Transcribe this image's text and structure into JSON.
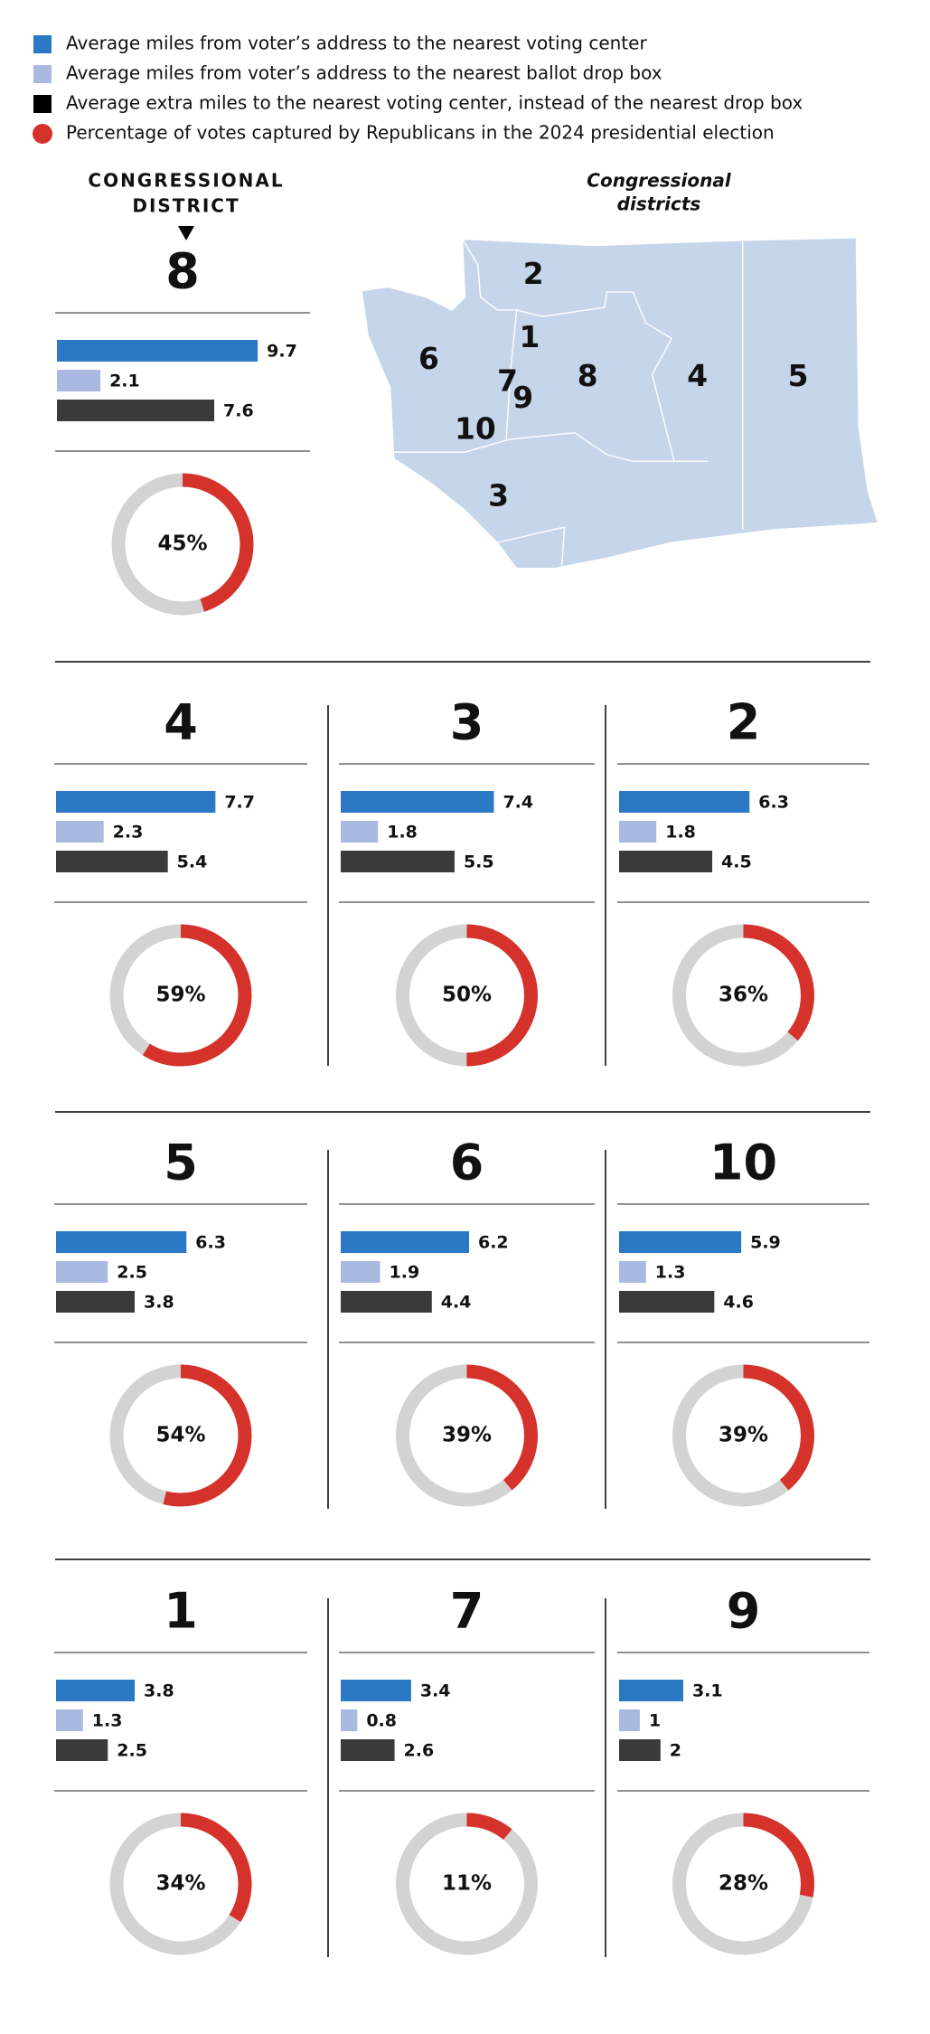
{
  "legend": [
    {
      "label": "Average miles from voter’s address to the nearest voting center",
      "color": "#2b78c5",
      "shape": "square"
    },
    {
      "label": "Average miles from voter’s address to the nearest ballot drop box",
      "color": "#a9b9e0",
      "shape": "square"
    },
    {
      "label": "Average extra miles to the nearest voting center, instead of the nearest drop box",
      "color": "#000000",
      "shape": "square"
    },
    {
      "label": "Percentage of votes captured by Republicans in the 2024 presidential election",
      "color": "#d4322b",
      "shape": "circle"
    }
  ],
  "header": {
    "lines": [
      "CONGRESSIONAL",
      "DISTRICT"
    ]
  },
  "map": {
    "title_lines": [
      "Congressional",
      "districts"
    ],
    "labels": [
      "2",
      "1",
      "6",
      "7",
      "9",
      "8",
      "4",
      "5",
      "10",
      "3"
    ],
    "color": "#c5d5ea"
  },
  "bar_colors": [
    "#2b78c5",
    "#a9b9e0",
    "#3a3a3a"
  ],
  "ring_color": "#d3d3d3",
  "arc_color": "#d4322b",
  "districts": [
    {
      "name": "8",
      "bars": [
        9.7,
        2.1,
        7.6
      ],
      "percent": 45,
      "percent_label": "45%"
    },
    {
      "name": "4",
      "bars": [
        7.7,
        2.3,
        5.4
      ],
      "percent": 59,
      "percent_label": "59%"
    },
    {
      "name": "3",
      "bars": [
        7.4,
        1.8,
        5.5
      ],
      "percent": 50,
      "percent_label": "50%"
    },
    {
      "name": "2",
      "bars": [
        6.3,
        1.8,
        4.5
      ],
      "percent": 36,
      "percent_label": "36%"
    },
    {
      "name": "5",
      "bars": [
        6.3,
        2.5,
        3.8
      ],
      "percent": 54,
      "percent_label": "54%"
    },
    {
      "name": "6",
      "bars": [
        6.2,
        1.9,
        4.4
      ],
      "percent": 39,
      "percent_label": "39%"
    },
    {
      "name": "10",
      "bars": [
        5.9,
        1.3,
        4.6
      ],
      "percent": 39,
      "percent_label": "39%"
    },
    {
      "name": "1",
      "bars": [
        3.8,
        1.3,
        2.5
      ],
      "percent": 34,
      "percent_label": "34%"
    },
    {
      "name": "7",
      "bars": [
        3.4,
        0.8,
        2.6
      ],
      "percent": 11,
      "percent_label": "11%"
    },
    {
      "name": "9",
      "bars": [
        3.1,
        1,
        2
      ],
      "percent": 28,
      "percent_label": "28%"
    }
  ]
}
